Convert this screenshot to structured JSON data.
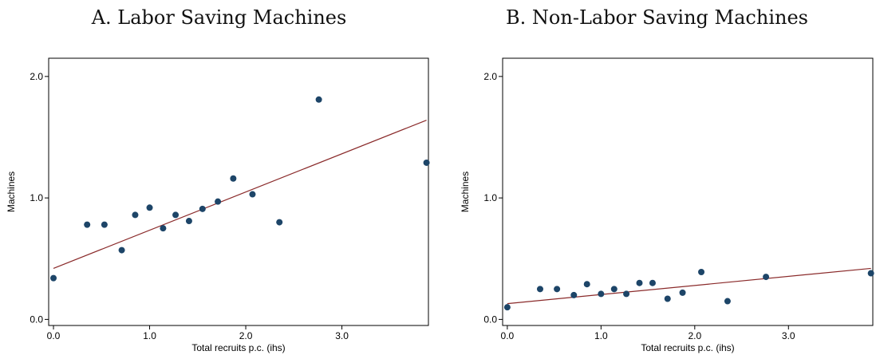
{
  "chart_data": [
    {
      "type": "scatter",
      "title": "A. Labor Saving Machines",
      "xlabel": "Total recruits p.c. (ihs)",
      "ylabel": "Machines",
      "xlim": [
        -0.05,
        3.9
      ],
      "ylim": [
        -0.05,
        2.15
      ],
      "xticks": [
        "0.0",
        "1.0",
        "2.0",
        "3.0"
      ],
      "yticks": [
        "0.0",
        "1.0",
        "2.0"
      ],
      "grid": false,
      "points": [
        {
          "x": 0.0,
          "y": 0.34
        },
        {
          "x": 0.35,
          "y": 0.78
        },
        {
          "x": 0.53,
          "y": 0.78
        },
        {
          "x": 0.71,
          "y": 0.57
        },
        {
          "x": 0.85,
          "y": 0.86
        },
        {
          "x": 1.0,
          "y": 0.92
        },
        {
          "x": 1.14,
          "y": 0.75
        },
        {
          "x": 1.27,
          "y": 0.86
        },
        {
          "x": 1.41,
          "y": 0.81
        },
        {
          "x": 1.55,
          "y": 0.91
        },
        {
          "x": 1.71,
          "y": 0.97
        },
        {
          "x": 1.87,
          "y": 1.16
        },
        {
          "x": 2.07,
          "y": 1.03
        },
        {
          "x": 2.35,
          "y": 0.8
        },
        {
          "x": 2.76,
          "y": 1.81
        },
        {
          "x": 3.88,
          "y": 1.29
        }
      ],
      "fit_line": {
        "x": [
          0.0,
          3.88
        ],
        "y": [
          0.42,
          1.64
        ]
      },
      "colors": {
        "points": "#1d4568",
        "fit_line": "#8a2a2a"
      }
    },
    {
      "type": "scatter",
      "title": "B. Non-Labor Saving Machines",
      "xlabel": "Total recruits p.c. (ihs)",
      "ylabel": "Machines",
      "xlim": [
        -0.05,
        3.9
      ],
      "ylim": [
        -0.05,
        2.15
      ],
      "xticks": [
        "0.0",
        "1.0",
        "2.0",
        "3.0"
      ],
      "yticks": [
        "0.0",
        "1.0",
        "2.0"
      ],
      "grid": false,
      "points": [
        {
          "x": 0.0,
          "y": 0.1
        },
        {
          "x": 0.35,
          "y": 0.25
        },
        {
          "x": 0.53,
          "y": 0.25
        },
        {
          "x": 0.71,
          "y": 0.2
        },
        {
          "x": 0.85,
          "y": 0.29
        },
        {
          "x": 1.0,
          "y": 0.21
        },
        {
          "x": 1.14,
          "y": 0.25
        },
        {
          "x": 1.27,
          "y": 0.21
        },
        {
          "x": 1.41,
          "y": 0.3
        },
        {
          "x": 1.55,
          "y": 0.3
        },
        {
          "x": 1.71,
          "y": 0.17
        },
        {
          "x": 1.87,
          "y": 0.22
        },
        {
          "x": 2.07,
          "y": 0.39
        },
        {
          "x": 2.35,
          "y": 0.15
        },
        {
          "x": 2.76,
          "y": 0.35
        },
        {
          "x": 3.88,
          "y": 0.38
        }
      ],
      "fit_line": {
        "x": [
          0.0,
          3.88
        ],
        "y": [
          0.13,
          0.42
        ]
      },
      "colors": {
        "points": "#1d4568",
        "fit_line": "#8a2a2a"
      }
    }
  ]
}
